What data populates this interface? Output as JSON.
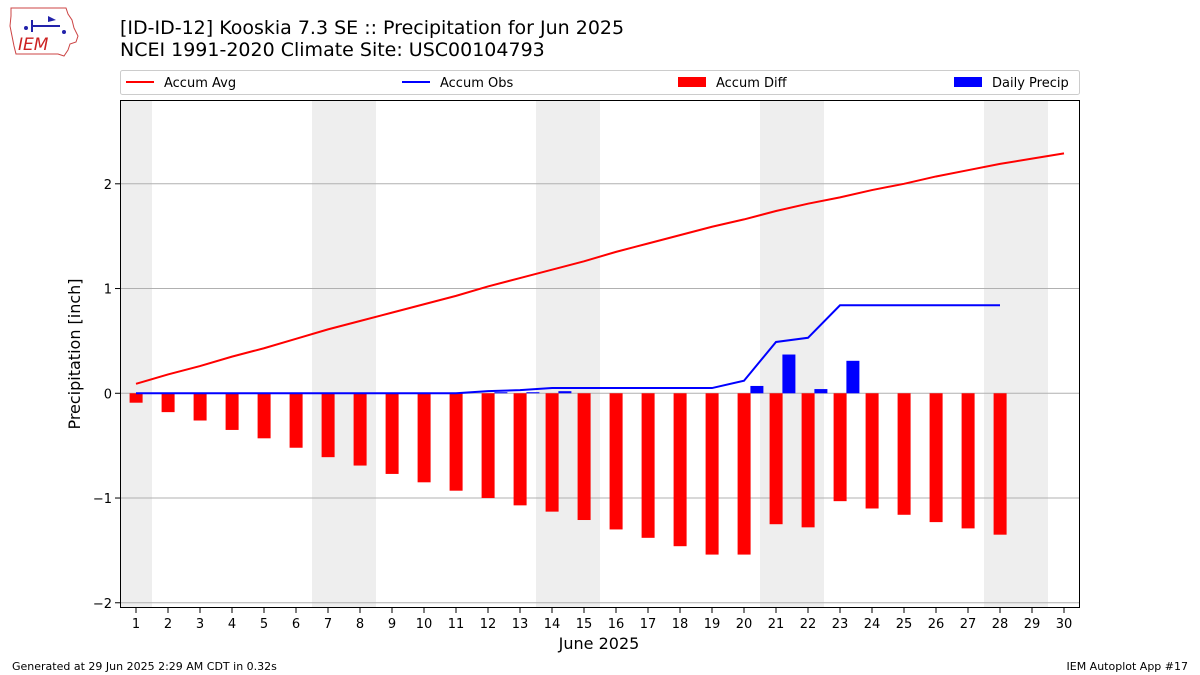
{
  "title_line1": "[ID-ID-12] Kooskia 7.3 SE :: Precipitation for Jun 2025",
  "title_line2": "NCEI 1991-2020 Climate Site: USC00104793",
  "logo_text": "IEM",
  "footer_left": "Generated at 29 Jun 2025 2:29 AM CDT in 0.32s",
  "footer_right": "IEM Autoplot App #17",
  "colors": {
    "accum_avg": "#ff0000",
    "accum_obs": "#0000ff",
    "accum_diff": "#ff0000",
    "daily_precip": "#0000ff",
    "weekend_shade": "#eeeeee",
    "grid": "#b0b0b0"
  },
  "chart_data": {
    "type": "bar",
    "xlabel": "June 2025",
    "ylabel": "Precipitation [inch]",
    "xlim": [
      0.5,
      30.5
    ],
    "ylim": [
      -2.05,
      2.8
    ],
    "yticks": [
      -2,
      -1,
      0,
      1,
      2
    ],
    "ytick_labels": [
      "−2",
      "−1",
      "0",
      "1",
      "2"
    ],
    "days": [
      1,
      2,
      3,
      4,
      5,
      6,
      7,
      8,
      9,
      10,
      11,
      12,
      13,
      14,
      15,
      16,
      17,
      18,
      19,
      20,
      21,
      22,
      23,
      24,
      25,
      26,
      27,
      28,
      29,
      30
    ],
    "grid": true,
    "legend_position": "top",
    "shaded_days": [
      1,
      7,
      8,
      14,
      15,
      21,
      22,
      28,
      29
    ],
    "series": [
      {
        "name": "Accum Avg",
        "kind": "line",
        "values": [
          0.09,
          0.18,
          0.26,
          0.35,
          0.43,
          0.52,
          0.61,
          0.69,
          0.77,
          0.85,
          0.93,
          1.02,
          1.1,
          1.18,
          1.26,
          1.35,
          1.43,
          1.51,
          1.59,
          1.66,
          1.74,
          1.81,
          1.87,
          1.94,
          2.0,
          2.07,
          2.13,
          2.19,
          2.24,
          2.29
        ]
      },
      {
        "name": "Accum Obs",
        "kind": "line",
        "values": [
          0,
          0,
          0,
          0,
          0,
          0,
          0,
          0,
          0,
          0,
          0,
          0.02,
          0.03,
          0.05,
          0.05,
          0.05,
          0.05,
          0.05,
          0.05,
          0.12,
          0.49,
          0.53,
          0.84,
          0.84,
          0.84,
          0.84,
          0.84,
          0.84
        ]
      },
      {
        "name": "Accum Diff",
        "kind": "bar",
        "values": [
          -0.09,
          -0.18,
          -0.26,
          -0.35,
          -0.43,
          -0.52,
          -0.61,
          -0.69,
          -0.77,
          -0.85,
          -0.93,
          -1.0,
          -1.07,
          -1.13,
          -1.21,
          -1.3,
          -1.38,
          -1.46,
          -1.54,
          -1.54,
          -1.25,
          -1.28,
          -1.03,
          -1.1,
          -1.16,
          -1.23,
          -1.29,
          -1.35
        ]
      },
      {
        "name": "Daily Precip",
        "kind": "bar",
        "values": [
          0,
          0,
          0,
          0,
          0,
          0,
          0,
          0,
          0,
          0,
          0,
          0.01,
          0.01,
          0.02,
          0,
          0,
          0,
          0,
          0,
          0.07,
          0.37,
          0.04,
          0.31,
          0,
          0,
          0,
          0,
          0
        ]
      }
    ]
  }
}
